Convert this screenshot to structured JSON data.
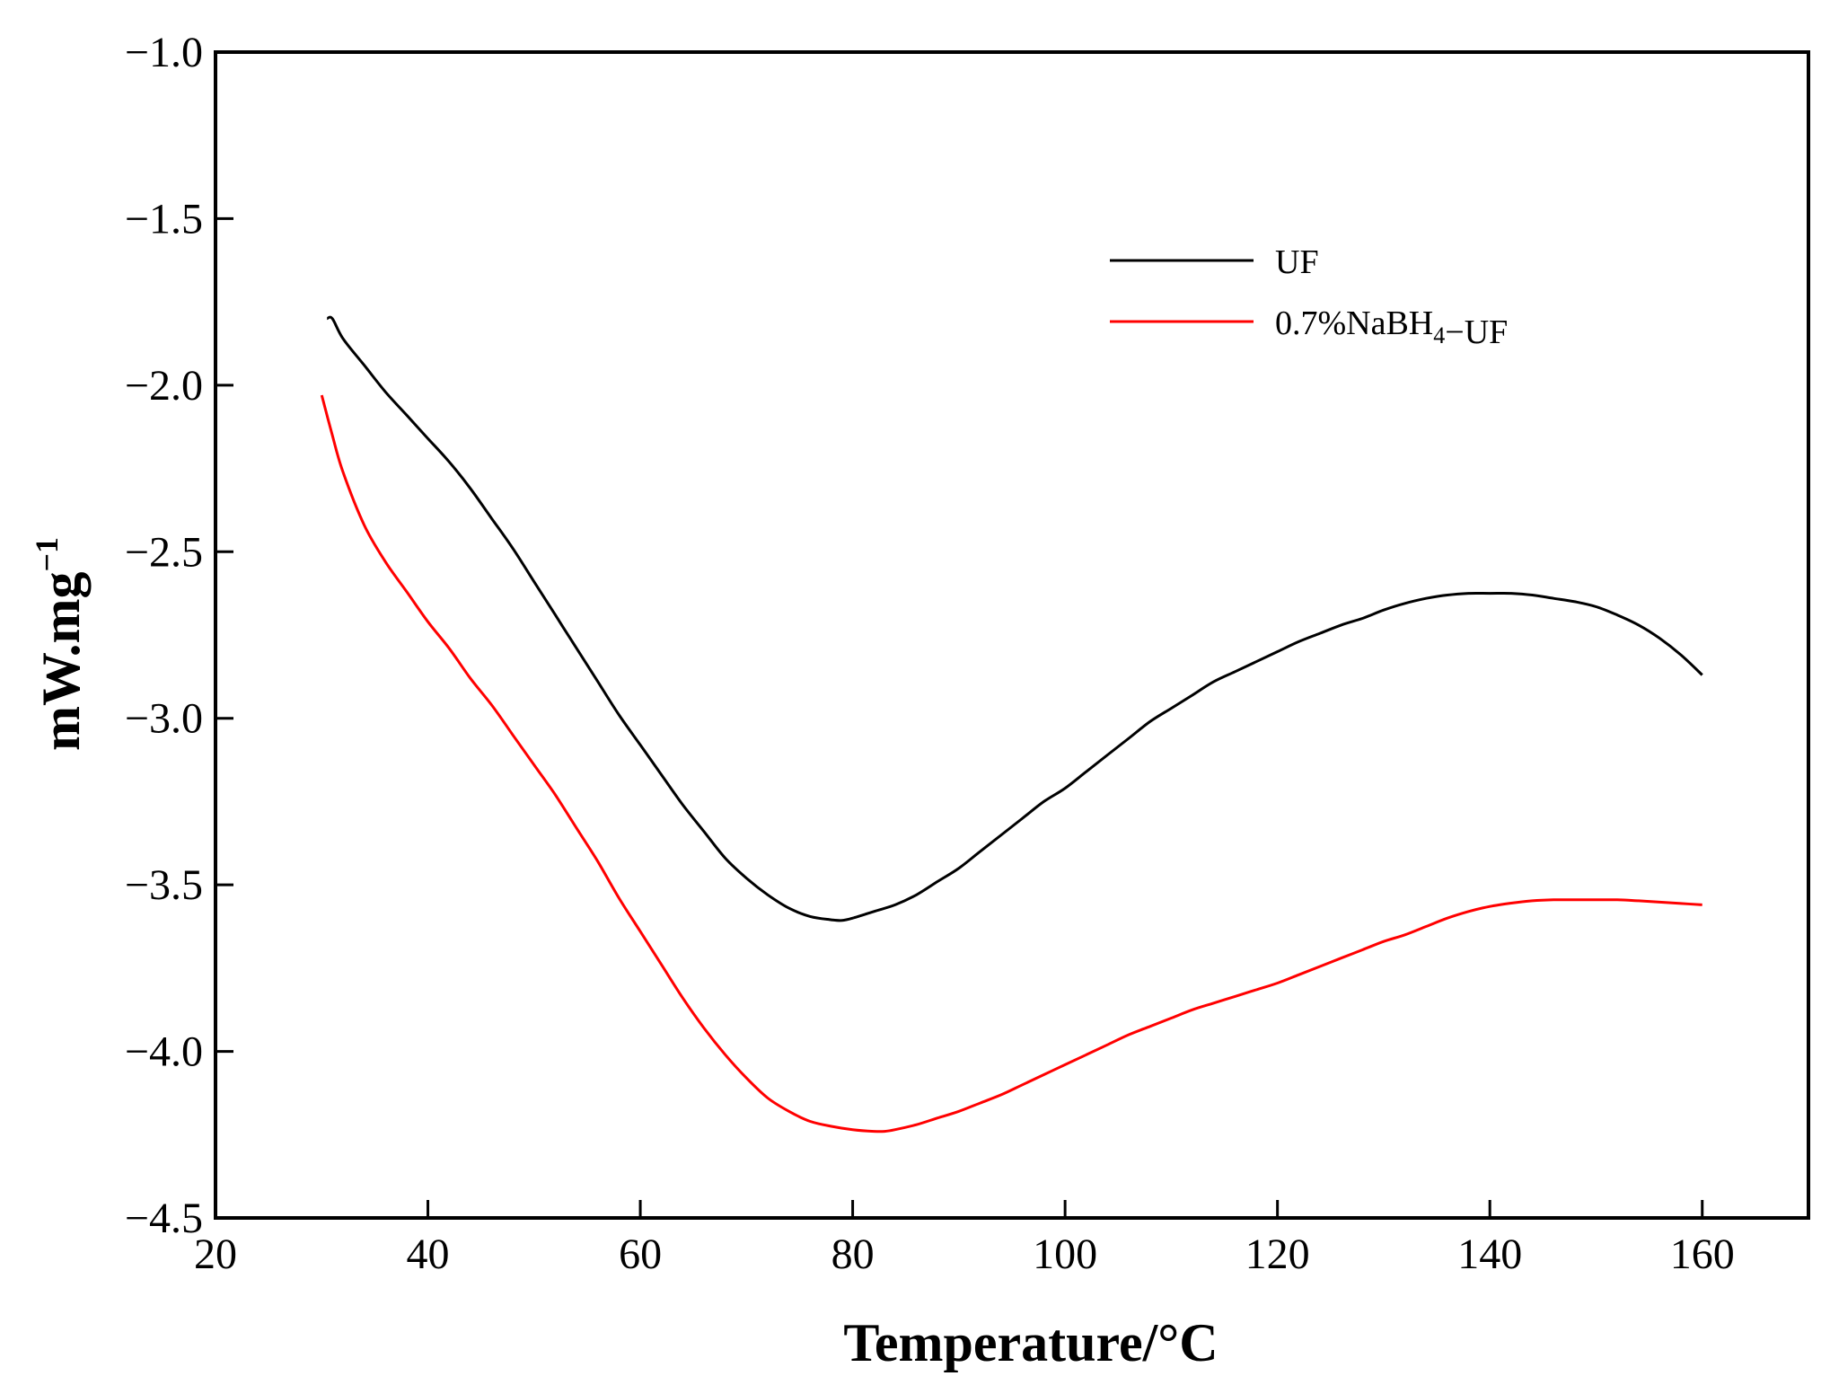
{
  "chart_data": {
    "type": "line",
    "title": "",
    "xlabel": "Temperature/°C",
    "ylabel": {
      "main": "mW.mg",
      "superscript": "−1"
    },
    "xlim": [
      20,
      170
    ],
    "ylim": [
      -4.5,
      -1.0
    ],
    "xticks": [
      20,
      40,
      60,
      80,
      100,
      120,
      140,
      160
    ],
    "xtick_labels": [
      "20",
      "40",
      "60",
      "80",
      "100",
      "120",
      "140",
      "160"
    ],
    "yticks": [
      -1.0,
      -1.5,
      -2.0,
      -2.5,
      -3.0,
      -3.5,
      -4.0,
      -4.5
    ],
    "ytick_labels": [
      "−1.0",
      "−1.5",
      "−2.0",
      "−2.5",
      "−3.0",
      "−3.5",
      "−4.0",
      "−4.5"
    ],
    "grid": false,
    "legend_position": "top-right",
    "series": [
      {
        "name": "UF",
        "legend": {
          "parts": [
            {
              "text": "UF"
            }
          ]
        },
        "color": "#000000",
        "x": [
          30.5,
          31,
          32,
          34,
          36,
          38,
          40,
          42,
          44,
          46,
          48,
          50,
          52,
          54,
          56,
          58,
          60,
          62,
          64,
          66,
          68,
          70,
          72,
          74,
          76,
          78,
          79,
          80,
          82,
          84,
          86,
          88,
          90,
          92,
          94,
          96,
          98,
          100,
          102,
          104,
          106,
          108,
          110,
          112,
          114,
          116,
          118,
          120,
          122,
          124,
          126,
          128,
          130,
          132,
          134,
          136,
          138,
          140,
          142,
          144,
          146,
          148,
          150,
          152,
          154,
          156,
          158,
          160
        ],
        "y": [
          -1.8,
          -1.8,
          -1.86,
          -1.94,
          -2.02,
          -2.09,
          -2.16,
          -2.23,
          -2.31,
          -2.4,
          -2.49,
          -2.59,
          -2.69,
          -2.79,
          -2.89,
          -2.99,
          -3.08,
          -3.17,
          -3.26,
          -3.34,
          -3.42,
          -3.48,
          -3.53,
          -3.57,
          -3.595,
          -3.605,
          -3.607,
          -3.6,
          -3.58,
          -3.56,
          -3.53,
          -3.49,
          -3.45,
          -3.4,
          -3.35,
          -3.3,
          -3.25,
          -3.21,
          -3.16,
          -3.11,
          -3.06,
          -3.01,
          -2.97,
          -2.93,
          -2.89,
          -2.86,
          -2.83,
          -2.8,
          -2.77,
          -2.745,
          -2.72,
          -2.7,
          -2.675,
          -2.655,
          -2.64,
          -2.63,
          -2.625,
          -2.625,
          -2.625,
          -2.63,
          -2.64,
          -2.65,
          -2.665,
          -2.69,
          -2.72,
          -2.76,
          -2.81,
          -2.87
        ]
      },
      {
        "name": "0.7%NaBH4-UF",
        "legend": {
          "parts": [
            {
              "text": "0.7%NaBH"
            },
            {
              "text": "4",
              "sub": true
            },
            {
              "text": "−UF"
            }
          ]
        },
        "color": "#ff0000",
        "x": [
          30,
          31,
          32,
          34,
          36,
          38,
          40,
          42,
          44,
          46,
          48,
          50,
          52,
          54,
          56,
          58,
          60,
          62,
          64,
          66,
          68,
          70,
          72,
          74,
          76,
          78,
          80,
          82,
          83,
          84,
          86,
          88,
          90,
          92,
          94,
          96,
          98,
          100,
          102,
          104,
          106,
          108,
          110,
          112,
          114,
          116,
          118,
          120,
          122,
          124,
          126,
          128,
          130,
          132,
          134,
          136,
          138,
          140,
          142,
          144,
          146,
          148,
          150,
          152,
          154,
          156,
          158,
          160
        ],
        "y": [
          -2.03,
          -2.15,
          -2.26,
          -2.42,
          -2.53,
          -2.62,
          -2.71,
          -2.79,
          -2.88,
          -2.96,
          -3.05,
          -3.14,
          -3.23,
          -3.33,
          -3.43,
          -3.54,
          -3.64,
          -3.74,
          -3.84,
          -3.93,
          -4.01,
          -4.08,
          -4.14,
          -4.18,
          -4.21,
          -4.225,
          -4.235,
          -4.24,
          -4.24,
          -4.235,
          -4.22,
          -4.2,
          -4.18,
          -4.155,
          -4.13,
          -4.1,
          -4.07,
          -4.04,
          -4.01,
          -3.98,
          -3.95,
          -3.925,
          -3.9,
          -3.875,
          -3.855,
          -3.835,
          -3.815,
          -3.795,
          -3.77,
          -3.745,
          -3.72,
          -3.695,
          -3.67,
          -3.65,
          -3.625,
          -3.6,
          -3.58,
          -3.565,
          -3.555,
          -3.548,
          -3.545,
          -3.545,
          -3.545,
          -3.545,
          -3.548,
          -3.552,
          -3.556,
          -3.56
        ]
      }
    ]
  }
}
